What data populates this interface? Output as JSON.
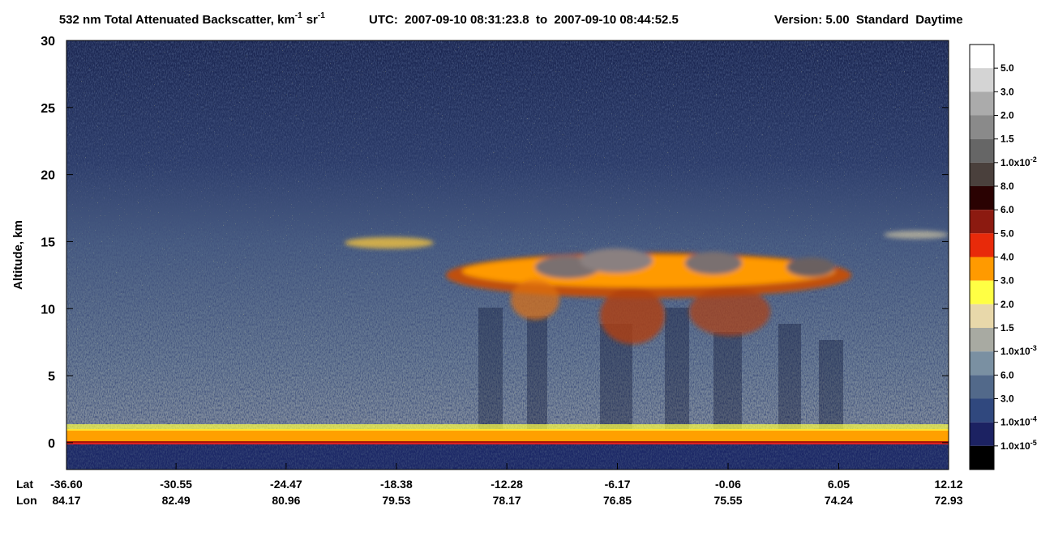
{
  "chart_data": {
    "type": "heatmap",
    "title": {
      "main": "532 nm Total Attenuated Backscatter, km",
      "exp1": "-1",
      "unit2": "sr",
      "exp2": "-1"
    },
    "time_range": "UTC:  2007-09-10 08:31:23.8  to  2007-09-10 08:44:52.5",
    "version": "Version: 5.00  Standard  Daytime",
    "y_label": "Altitude, km",
    "ylim": [
      -2,
      30
    ],
    "yticks": [
      0,
      5,
      10,
      15,
      20,
      25,
      30
    ],
    "x_row_labels": [
      "Lat",
      "Lon"
    ],
    "xlim": [
      -36.6,
      12.12
    ],
    "xticks": [
      {
        "value": -36.6,
        "label": "-36.60"
      },
      {
        "value": -30.55,
        "label": "-30.55"
      },
      {
        "value": -24.47,
        "label": "-24.47"
      },
      {
        "value": -18.38,
        "label": "-18.38"
      },
      {
        "value": -12.28,
        "label": "-12.28"
      },
      {
        "value": -6.17,
        "label": "-6.17"
      },
      {
        "value": -0.06,
        "label": "-0.06"
      },
      {
        "value": 6.05,
        "label": "6.05"
      },
      {
        "value": 12.12,
        "label": "12.12"
      }
    ],
    "lon_labels": [
      "84.17",
      "82.49",
      "80.96",
      "79.53",
      "78.17",
      "76.85",
      "75.55",
      "74.24",
      "72.93"
    ],
    "colorbar": {
      "colors": [
        "#ffffff",
        "#d4d4d4",
        "#ababab",
        "#8a8a8a",
        "#666666",
        "#4a403c",
        "#2a0202",
        "#8c1a10",
        "#e82a0a",
        "#ff9a00",
        "#ffff44",
        "#e8d8aa",
        "#a8aaa2",
        "#7a90a2",
        "#52698a",
        "#30487e",
        "#1c2262",
        "#000000"
      ],
      "labels": [
        "5.0",
        "3.0",
        "2.0",
        "1.5",
        {
          "text": "1.0x10",
          "sup": "-2"
        },
        "8.0",
        "6.0",
        "5.0",
        "4.0",
        "3.0",
        "2.0",
        "1.5",
        {
          "text": "1.0x10",
          "sup": "-3"
        },
        "6.0",
        "3.0",
        {
          "text": "1.0x10",
          "sup": "-4"
        },
        {
          "text": "1.0x10",
          "sup": "-5"
        }
      ]
    }
  }
}
